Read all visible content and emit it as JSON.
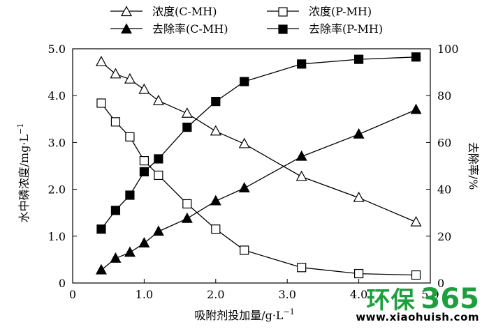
{
  "chart_data": {
    "type": "line",
    "title": "",
    "xlabel": "吸附剂投加量/g·L",
    "xlabel_sup": "−1",
    "ylabel_left": "水中磷浓度/mg·L",
    "ylabel_left_sup": "−1",
    "ylabel_right": "去除率/%",
    "xlim": [
      0,
      5.0
    ],
    "ylim_left": [
      0,
      5.0
    ],
    "ylim_right": [
      0,
      100
    ],
    "x_ticks": [
      "0",
      "1.0",
      "2.0",
      "3.0",
      "4.0",
      "5.0"
    ],
    "y_left_ticks": [
      "0",
      "1.0",
      "2.0",
      "3.0",
      "4.0",
      "5.0"
    ],
    "y_right_ticks": [
      "0",
      "20",
      "40",
      "60",
      "80",
      "100"
    ],
    "grid": false,
    "legend_placement": "top",
    "series": [
      {
        "name": "浓度(C-MH)",
        "axis": "left",
        "marker": "triangle-open",
        "x": [
          0.4,
          0.6,
          0.8,
          1.0,
          1.2,
          1.6,
          2.0,
          2.4,
          3.2,
          4.0,
          4.8
        ],
        "y": [
          4.72,
          4.46,
          4.35,
          4.13,
          3.89,
          3.62,
          3.24,
          2.97,
          2.27,
          1.82,
          1.3
        ]
      },
      {
        "name": "浓度(P-MH)",
        "axis": "left",
        "marker": "square-open",
        "x": [
          0.4,
          0.6,
          0.8,
          1.0,
          1.2,
          1.6,
          2.0,
          2.4,
          3.2,
          4.0,
          4.8
        ],
        "y": [
          3.84,
          3.44,
          3.12,
          2.61,
          2.3,
          1.69,
          1.15,
          0.7,
          0.33,
          0.2,
          0.17
        ]
      },
      {
        "name": "去除率(C-MH)",
        "axis": "right",
        "marker": "triangle-filled",
        "x": [
          0.4,
          0.6,
          0.8,
          1.0,
          1.2,
          1.6,
          2.0,
          2.4,
          3.2,
          4.0,
          4.8
        ],
        "y": [
          5.5,
          10.5,
          13,
          17,
          22,
          27.5,
          35,
          40.5,
          54,
          63.5,
          74
        ]
      },
      {
        "name": "去除率(P-MH)",
        "axis": "right",
        "marker": "square-filled",
        "x": [
          0.4,
          0.6,
          0.8,
          1.0,
          1.2,
          1.6,
          2.0,
          2.4,
          3.2,
          4.0,
          4.8
        ],
        "y": [
          23,
          31,
          37.5,
          47.5,
          53,
          66.5,
          77.5,
          86,
          93.5,
          95.5,
          96.5
        ]
      }
    ]
  },
  "watermark": {
    "logo_cn": "环保",
    "logo_num": "365",
    "url": "www.xiaohuish.com",
    "color": "#1e9e3e"
  }
}
